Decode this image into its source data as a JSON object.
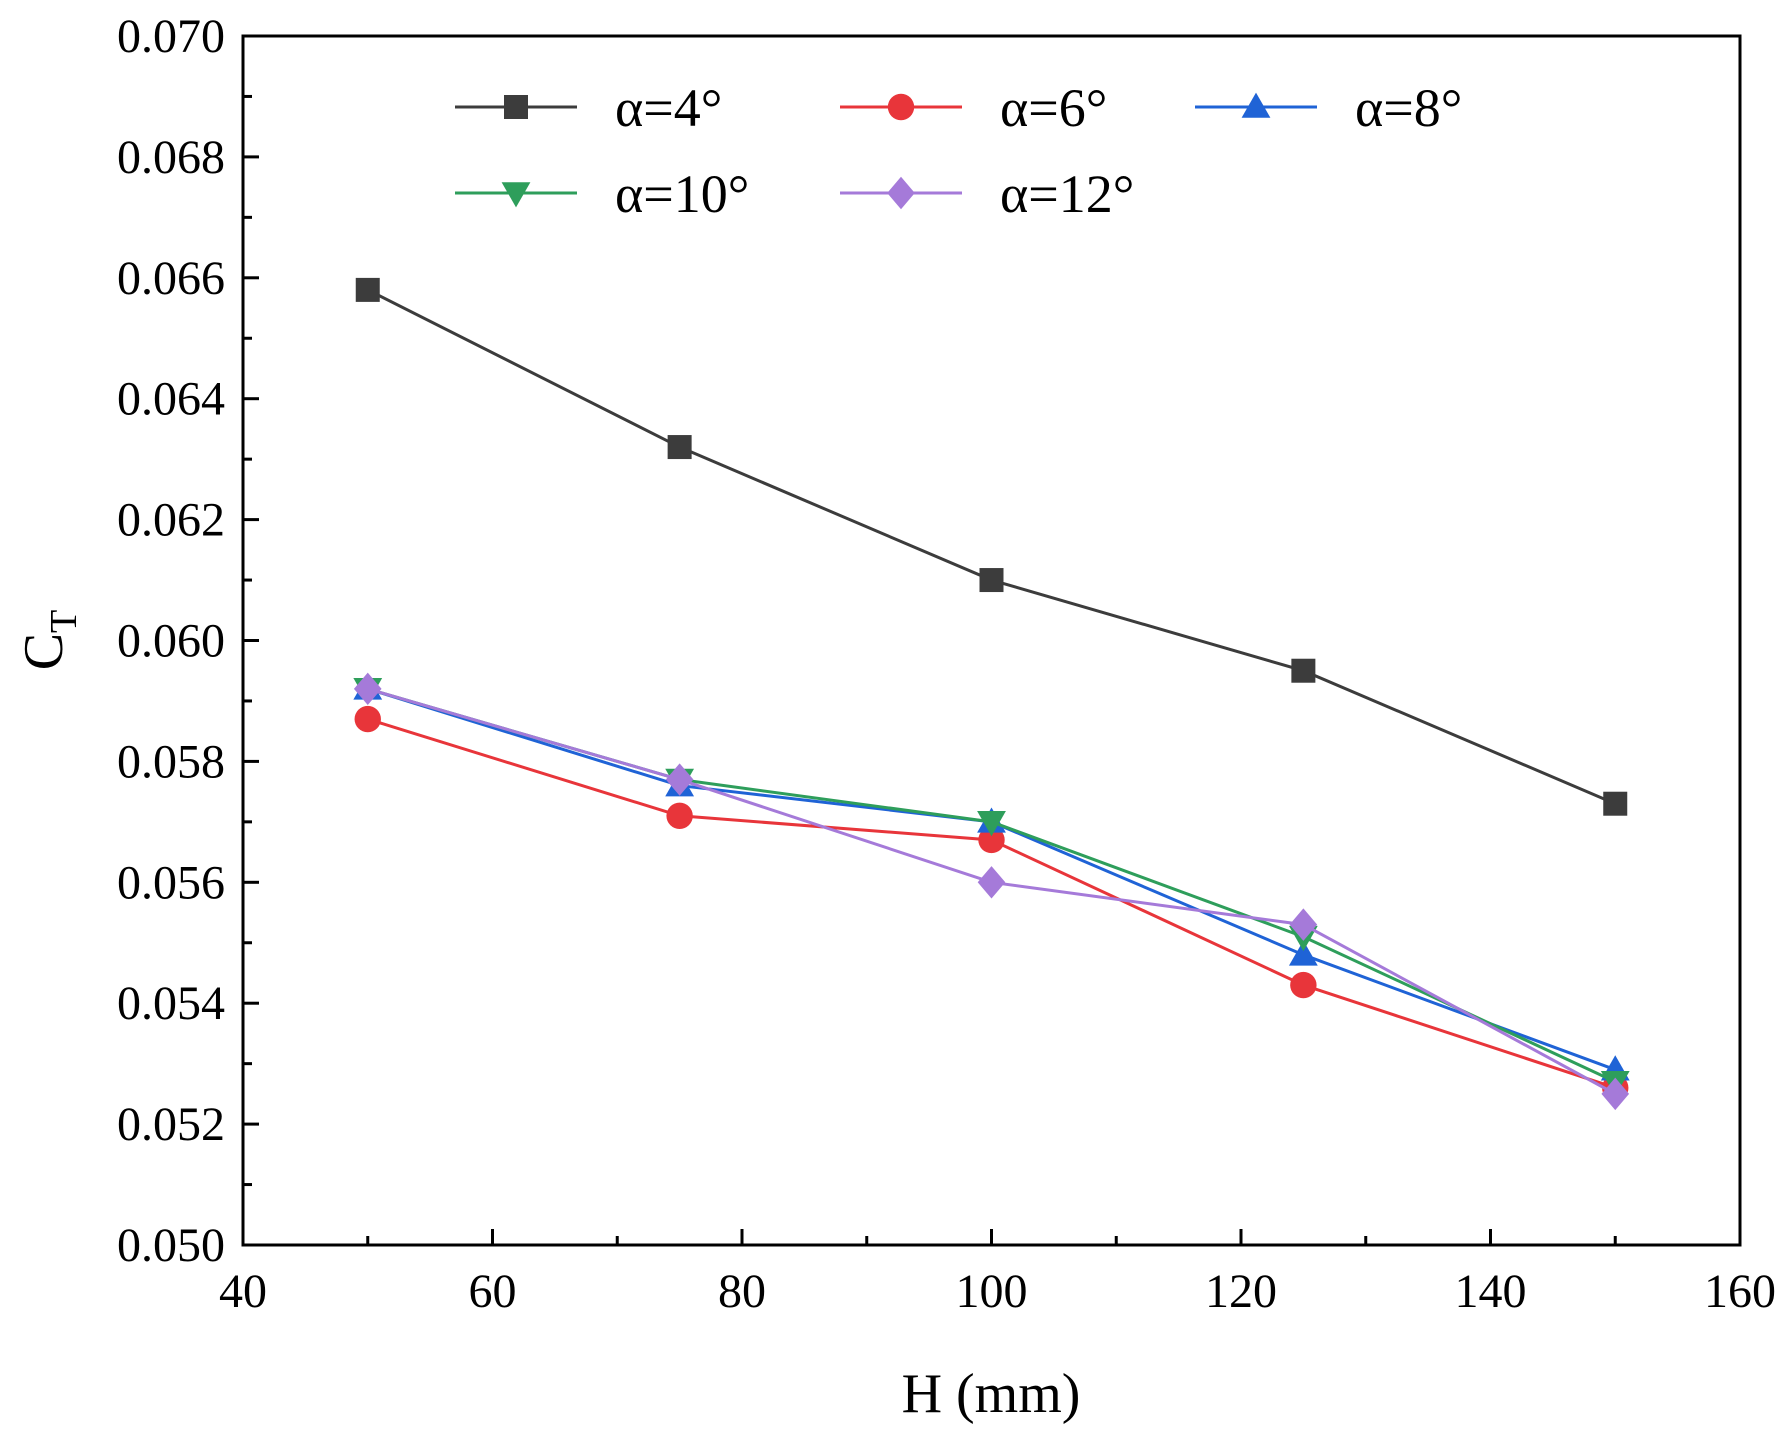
{
  "chart_data": {
    "type": "line",
    "title": "",
    "xlabel": "H (mm)",
    "ylabel_main": "C",
    "ylabel_sub": "T",
    "xlim": [
      40,
      160
    ],
    "ylim": [
      0.05,
      0.07
    ],
    "x_ticks": [
      40,
      60,
      80,
      100,
      120,
      140,
      160
    ],
    "y_ticks": [
      0.05,
      0.052,
      0.054,
      0.056,
      0.058,
      0.06,
      0.062,
      0.064,
      0.066,
      0.068,
      0.07
    ],
    "x_tick_labels": [
      "40",
      "60",
      "80",
      "100",
      "120",
      "140",
      "160"
    ],
    "y_tick_labels": [
      "0.050",
      "0.052",
      "0.054",
      "0.056",
      "0.058",
      "0.060",
      "0.062",
      "0.064",
      "0.066",
      "0.068",
      "0.070"
    ],
    "grid": false,
    "legend_position": "top",
    "x": [
      50,
      75,
      100,
      125,
      150
    ],
    "series": [
      {
        "name": "α=4°",
        "color": "#3c3c3c",
        "marker": "square",
        "values": [
          0.0658,
          0.0632,
          0.061,
          0.0595,
          0.0573
        ]
      },
      {
        "name": "α=6°",
        "color": "#e8353a",
        "marker": "circle",
        "values": [
          0.0587,
          0.0571,
          0.0567,
          0.0543,
          0.0526
        ]
      },
      {
        "name": "α=8°",
        "color": "#1f63d6",
        "marker": "triangle-up",
        "values": [
          0.0592,
          0.0576,
          0.057,
          0.0548,
          0.0529
        ]
      },
      {
        "name": "α=10°",
        "color": "#2e9e5b",
        "marker": "triangle-down",
        "values": [
          0.0592,
          0.0577,
          0.057,
          0.0551,
          0.0527
        ]
      },
      {
        "name": "α=12°",
        "color": "#a57ad9",
        "marker": "diamond",
        "values": [
          0.0592,
          0.0577,
          0.056,
          0.0553,
          0.0525
        ]
      }
    ]
  }
}
